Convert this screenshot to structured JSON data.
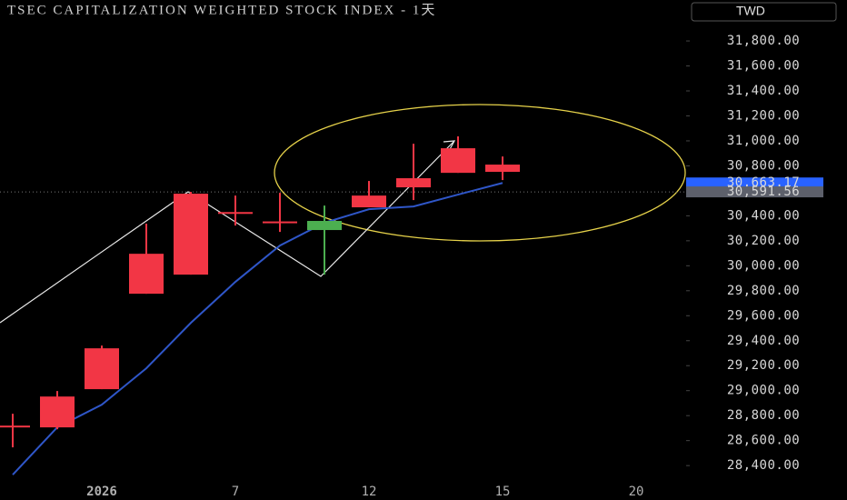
{
  "chart_data": {
    "type": "candlestick",
    "title": "TSEC CAPITALIZATION WEIGHTED STOCK INDEX - 1天",
    "currency": "TWD",
    "categories": [
      null,
      null,
      "2026",
      null,
      null,
      "7",
      null,
      null,
      "12",
      null,
      null,
      "15",
      null,
      null,
      "20"
    ],
    "open": [
      28710,
      28706,
      29012,
      29776,
      29929,
      30420,
      30345,
      30359,
      30468,
      30628,
      30744,
      30752,
      null,
      null,
      null
    ],
    "high": [
      28815,
      28997,
      29361,
      30337,
      30592,
      30562,
      30584,
      30482,
      30679,
      30977,
      31036,
      30875,
      null,
      null,
      null
    ],
    "low": [
      28546,
      28691,
      29012,
      29776,
      29929,
      30322,
      30271,
      29929,
      30468,
      30526,
      30744,
      30686,
      null,
      null,
      null
    ],
    "close": [
      28720,
      28953,
      29339,
      30096,
      30577,
      30430,
      30355,
      30286,
      30562,
      30701,
      30941,
      30810,
      null,
      null,
      null
    ],
    "up_color": "#f23645",
    "down_color": "#4caf50",
    "lines": [
      {
        "color": "#2f56c8",
        "values": [
          28327,
          28706,
          28888,
          29179,
          29543,
          29871,
          30162,
          30344,
          30453,
          30475,
          30570,
          30663.17,
          null,
          null,
          null
        ]
      }
    ],
    "ylim": [
      28270,
      32128
    ],
    "yticks": [
      {
        "value": 28400,
        "label": "28,400.00"
      },
      {
        "value": 28600,
        "label": "28,600.00"
      },
      {
        "value": 28800,
        "label": "28,800.00"
      },
      {
        "value": 29000,
        "label": "29,000.00"
      },
      {
        "value": 29200,
        "label": "29,200.00"
      },
      {
        "value": 29400,
        "label": "29,400.00"
      },
      {
        "value": 29600,
        "label": "29,600.00"
      },
      {
        "value": 29800,
        "label": "29,800.00"
      },
      {
        "value": 30000,
        "label": "30,000.00"
      },
      {
        "value": 30200,
        "label": "30,200.00"
      },
      {
        "value": 30400,
        "label": "30,400.00"
      },
      {
        "value": 30600,
        "label": "30,600.00"
      },
      {
        "value": 30800,
        "label": "30,800.00"
      },
      {
        "value": 31000,
        "label": "31,000.00"
      },
      {
        "value": 31200,
        "label": "31,200.00"
      },
      {
        "value": 31400,
        "label": "31,400.00"
      },
      {
        "value": 31600,
        "label": "31,600.00"
      },
      {
        "value": 31800,
        "label": "31,800.00"
      }
    ],
    "price_labels": [
      {
        "value": 30663.17,
        "label": "30,663.17",
        "color": "#2962ff"
      },
      {
        "value": 30591.56,
        "label": "30,591.56",
        "color": "#5d606b"
      }
    ],
    "grid": false
  }
}
